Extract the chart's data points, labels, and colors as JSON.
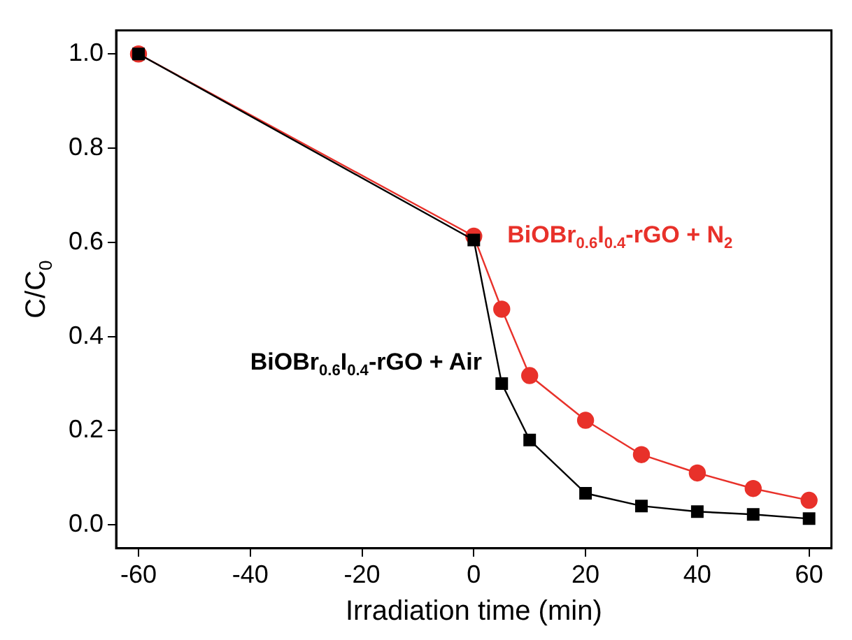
{
  "chart_data": {
    "type": "line",
    "xlabel": "Irradiation time (min)",
    "ylabel": "C/C$_{0}$",
    "xlim": [
      -64,
      64
    ],
    "xticks": [
      -60,
      -40,
      -20,
      0,
      20,
      40,
      60
    ],
    "ylim": [
      -0.05,
      1.05
    ],
    "yticks": [
      {
        "value": 0,
        "label": "0.0"
      },
      0.2,
      0.4,
      0.6,
      0.8,
      {
        "value": 1,
        "label": "1.0"
      }
    ],
    "grid": false,
    "legend": false,
    "line_style": "solid",
    "series": [
      {
        "name": "BiOBr$_{0.6}$I$_{0.4}$-rGO + Air",
        "color": "#000000",
        "marker": "square",
        "x": [
          -60,
          0,
          5,
          10,
          20,
          30,
          40,
          50,
          60
        ],
        "values": [
          1.0,
          0.605,
          0.3,
          0.18,
          0.067,
          0.04,
          0.028,
          0.022,
          0.013
        ]
      },
      {
        "name": "BiOBr$_{0.6}$I$_{0.4}$-rGO + N$_{2}$",
        "color": "#e8312a",
        "marker": "circle",
        "x": [
          -60,
          0,
          5,
          10,
          20,
          30,
          40,
          50,
          60
        ],
        "values": [
          1.0,
          0.613,
          0.458,
          0.317,
          0.222,
          0.149,
          0.11,
          0.077,
          0.052
        ]
      }
    ]
  }
}
